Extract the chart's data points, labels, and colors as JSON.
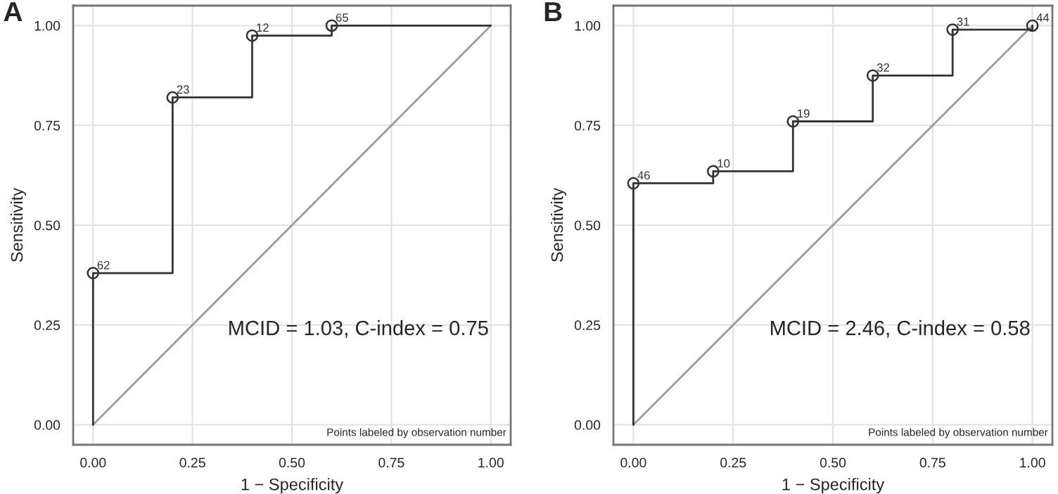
{
  "chart_data": [
    {
      "type": "line",
      "title": "A",
      "xlabel": "1 − Specificity",
      "ylabel": "Sensitivity",
      "xlim": [
        -0.05,
        1.05
      ],
      "ylim": [
        -0.05,
        1.05
      ],
      "xticks": [
        {
          "value": 0,
          "label": "0.00"
        },
        {
          "value": 0.25,
          "label": "0.25"
        },
        {
          "value": 0.5,
          "label": "0.50"
        },
        {
          "value": 0.75,
          "label": "0.75"
        },
        {
          "value": 1,
          "label": "1.00"
        }
      ],
      "yticks": [
        {
          "value": 0,
          "label": "0.00"
        },
        {
          "value": 0.25,
          "label": "0.25"
        },
        {
          "value": 0.5,
          "label": "0.50"
        },
        {
          "value": 0.75,
          "label": "0.75"
        },
        {
          "value": 1,
          "label": "1.00"
        }
      ],
      "grid": true,
      "series": [
        {
          "type": "line",
          "color": "#999999",
          "x": [
            0,
            1
          ],
          "values": [
            0,
            1
          ]
        },
        {
          "color": "#333333",
          "x": [
            0,
            0,
            0.2,
            0.2,
            0.4,
            0.4,
            0.6,
            0.6,
            1
          ],
          "values": [
            0,
            0.38,
            0.38,
            0.82,
            0.82,
            0.975,
            0.975,
            1,
            1
          ]
        },
        {
          "type": "scatter",
          "color": "#333333",
          "marker": "circle",
          "x": [
            0,
            0.2,
            0.4,
            0.6
          ],
          "values": [
            0.38,
            0.82,
            0.975,
            1
          ]
        }
      ],
      "annotations": [
        "MCID = 1.03, C-index = 0.75",
        "Points labeled by observation number",
        {
          "text": "62",
          "x": 0,
          "y": 0.38
        },
        {
          "text": "23",
          "x": 0.2,
          "y": 0.82
        },
        {
          "text": "12",
          "x": 0.4,
          "y": 0.975
        },
        {
          "text": "65",
          "x": 0.6,
          "y": 1
        }
      ]
    },
    {
      "type": "line",
      "title": "B",
      "xlabel": "1 − Specificity",
      "ylabel": "Sensitivity",
      "xlim": [
        -0.05,
        1.05
      ],
      "ylim": [
        -0.05,
        1.05
      ],
      "xticks": [
        {
          "value": 0,
          "label": "0.00"
        },
        {
          "value": 0.25,
          "label": "0.25"
        },
        {
          "value": 0.5,
          "label": "0.50"
        },
        {
          "value": 0.75,
          "label": "0.75"
        },
        {
          "value": 1,
          "label": "1.00"
        }
      ],
      "yticks": [
        {
          "value": 0,
          "label": "0.00"
        },
        {
          "value": 0.25,
          "label": "0.25"
        },
        {
          "value": 0.5,
          "label": "0.50"
        },
        {
          "value": 0.75,
          "label": "0.75"
        },
        {
          "value": 1,
          "label": "1.00"
        }
      ],
      "grid": true,
      "series": [
        {
          "type": "line",
          "color": "#999999",
          "x": [
            0,
            1
          ],
          "values": [
            0,
            1
          ]
        },
        {
          "color": "#333333",
          "x": [
            0,
            0,
            0.2,
            0.2,
            0.4,
            0.4,
            0.6,
            0.6,
            0.8,
            0.8,
            1,
            1
          ],
          "values": [
            0,
            0.605,
            0.605,
            0.635,
            0.635,
            0.76,
            0.76,
            0.875,
            0.875,
            0.99,
            0.99,
            1
          ]
        },
        {
          "type": "scatter",
          "color": "#333333",
          "marker": "circle",
          "x": [
            0,
            0.2,
            0.4,
            0.6,
            0.8,
            1
          ],
          "values": [
            0.605,
            0.635,
            0.76,
            0.875,
            0.99,
            1
          ]
        }
      ],
      "annotations": [
        "MCID = 2.46, C-index = 0.58",
        "Points labeled by observation number",
        {
          "text": "46",
          "x": 0,
          "y": 0.605
        },
        {
          "text": "10",
          "x": 0.2,
          "y": 0.635
        },
        {
          "text": "19",
          "x": 0.4,
          "y": 0.76
        },
        {
          "text": "32",
          "x": 0.6,
          "y": 0.875
        },
        {
          "text": "31",
          "x": 0.8,
          "y": 0.99
        },
        {
          "text": "44",
          "x": 1,
          "y": 1
        }
      ]
    }
  ]
}
